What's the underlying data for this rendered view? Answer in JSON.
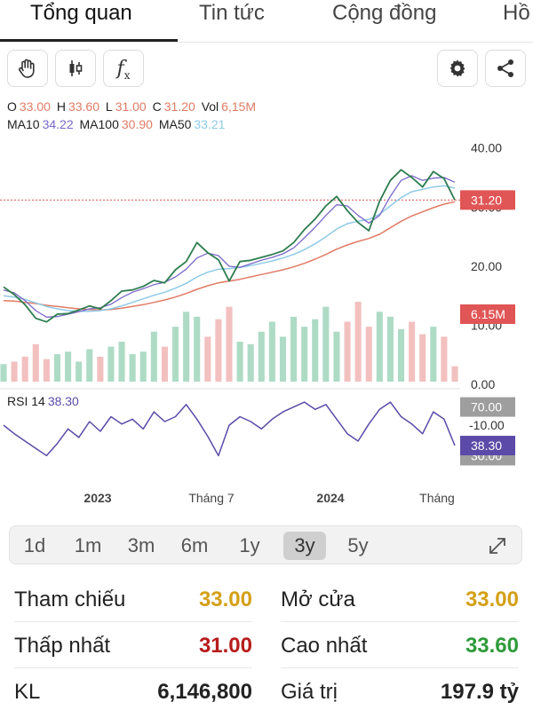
{
  "tabs": [
    {
      "label": "Tổng quan",
      "active": true
    },
    {
      "label": "Tin tức",
      "active": false
    },
    {
      "label": "Cộng đồng",
      "active": false
    },
    {
      "label": "Hồ",
      "active": false
    }
  ],
  "toolbar": {
    "icons": [
      "hand-icon",
      "candlestick-icon",
      "function-icon",
      "gear-icon",
      "share-icon"
    ],
    "function_glyph": "f",
    "function_sub": "x"
  },
  "ohlc": {
    "o_label": "O",
    "o_value": "33.00",
    "h_label": "H",
    "h_value": "33.60",
    "l_label": "L",
    "l_value": "31.00",
    "c_label": "C",
    "c_value": "31.20",
    "vol_label": "Vol",
    "vol_value": "6,15M"
  },
  "ma": {
    "ma10_label": "MA10",
    "ma10_value": "34.22",
    "ma100_label": "MA100",
    "ma100_value": "30.90",
    "ma50_label": "MA50",
    "ma50_value": "33.21"
  },
  "rsi": {
    "label": "RSI 14",
    "value": "38.30"
  },
  "colors": {
    "price_line": "#2e7d4f",
    "ma10": "#7b68c9",
    "ma50": "#8ecae6",
    "ma100": "#e07b65",
    "rsi_line": "#5c4aa8",
    "price_badge": "#e05555",
    "up": "#4caf80",
    "down": "#e57373",
    "reference": "#d4a017",
    "low": "#b71c1c",
    "high": "#2e9b3a"
  },
  "chart_data": {
    "type": "line",
    "price_axis_labels": [
      "40.00",
      "30.00",
      "20.00",
      "10.00"
    ],
    "price_ticks": [
      40,
      30,
      20,
      10
    ],
    "price_range": [
      5,
      44
    ],
    "volume_axis_label": "0.00",
    "x_axis_labels": [
      "2023",
      "Tháng 7",
      "2024",
      "Tháng"
    ],
    "last_price": 31.2,
    "last_price_label": "31.20",
    "last_volume_label": "6.15M",
    "rsi_range": [
      15,
      85
    ],
    "rsi_levels": [
      {
        "value": 70,
        "label": "70.00"
      },
      {
        "value": 30,
        "label": "30.00"
      }
    ],
    "rsi_extra_label": "-10.00",
    "rsi_last": 38.3,
    "rsi_last_label": "38.30",
    "price_series": [
      16.5,
      15.2,
      13.5,
      11.2,
      10.6,
      11.9,
      12.0,
      12.6,
      13.3,
      12.8,
      14.2,
      15.8,
      16.0,
      16.6,
      17.6,
      17.2,
      19.4,
      20.8,
      24.0,
      22.3,
      21.1,
      17.5,
      20.8,
      21.0,
      21.5,
      22.0,
      22.6,
      24.0,
      26.2,
      28.0,
      30.2,
      31.8,
      29.4,
      27.4,
      26.0,
      31.0,
      34.5,
      36.3,
      35.0,
      33.4,
      36.0,
      34.8,
      31.2
    ],
    "ma10_series": [
      16.0,
      15.5,
      14.2,
      12.5,
      11.4,
      11.5,
      11.9,
      12.3,
      12.8,
      13.0,
      13.6,
      14.7,
      15.6,
      16.2,
      16.9,
      17.3,
      18.2,
      19.5,
      21.4,
      22.2,
      21.8,
      20.0,
      19.8,
      20.4,
      21.0,
      21.5,
      22.1,
      23.1,
      24.8,
      26.6,
      28.6,
      30.4,
      30.2,
      28.6,
      27.3,
      28.6,
      31.8,
      34.5,
      35.3,
      34.5,
      34.9,
      35.0,
      34.2
    ],
    "ma50_series": [
      15.0,
      14.8,
      14.4,
      13.8,
      13.2,
      12.8,
      12.5,
      12.4,
      12.4,
      12.5,
      12.8,
      13.3,
      13.9,
      14.5,
      15.1,
      15.6,
      16.3,
      17.1,
      18.2,
      19.0,
      19.5,
      19.6,
      19.8,
      20.1,
      20.5,
      20.9,
      21.4,
      22.0,
      22.8,
      23.8,
      25.0,
      26.3,
      27.2,
      27.6,
      27.9,
      28.8,
      30.2,
      31.6,
      32.6,
      33.0,
      33.4,
      33.6,
      33.2
    ],
    "ma100_series": [
      14.2,
      14.1,
      13.9,
      13.7,
      13.4,
      13.2,
      13.0,
      12.8,
      12.7,
      12.6,
      12.7,
      12.9,
      13.2,
      13.5,
      13.9,
      14.3,
      14.8,
      15.4,
      16.1,
      16.7,
      17.2,
      17.5,
      17.8,
      18.2,
      18.6,
      19.0,
      19.4,
      19.9,
      20.5,
      21.2,
      22.0,
      22.9,
      23.6,
      24.2,
      24.7,
      25.4,
      26.5,
      27.6,
      28.5,
      29.2,
      29.9,
      30.5,
      30.9
    ],
    "rsi_series": [
      55,
      48,
      42,
      36,
      30,
      40,
      52,
      45,
      58,
      50,
      62,
      56,
      60,
      52,
      66,
      58,
      62,
      72,
      60,
      46,
      30,
      55,
      62,
      58,
      52,
      60,
      66,
      70,
      74,
      68,
      72,
      60,
      48,
      42,
      56,
      68,
      74,
      62,
      56,
      48,
      66,
      60,
      38.3
    ],
    "volume_series": [
      7,
      8,
      10,
      15,
      9,
      11,
      12,
      8,
      13,
      10,
      14,
      16,
      11,
      12,
      20,
      14,
      22,
      28,
      26,
      18,
      25,
      30,
      16,
      15,
      20,
      24,
      18,
      26,
      22,
      25,
      30,
      20,
      24,
      32,
      22,
      28,
      26,
      21,
      24,
      19,
      22,
      18,
      6.15
    ]
  },
  "periods": {
    "items": [
      "1d",
      "1m",
      "3m",
      "6m",
      "1y",
      "3y",
      "5y"
    ],
    "active_index": 5
  },
  "stats": {
    "reference_label": "Tham chiếu",
    "reference_value": "33.00",
    "open_label": "Mở cửa",
    "open_value": "33.00",
    "low_label": "Thấp nhất",
    "low_value": "31.00",
    "high_label": "Cao nhất",
    "high_value": "33.60",
    "volume_label": "KL",
    "volume_value": "6,146,800",
    "value_label": "Giá trị",
    "value_value": "197.9 tỷ"
  }
}
